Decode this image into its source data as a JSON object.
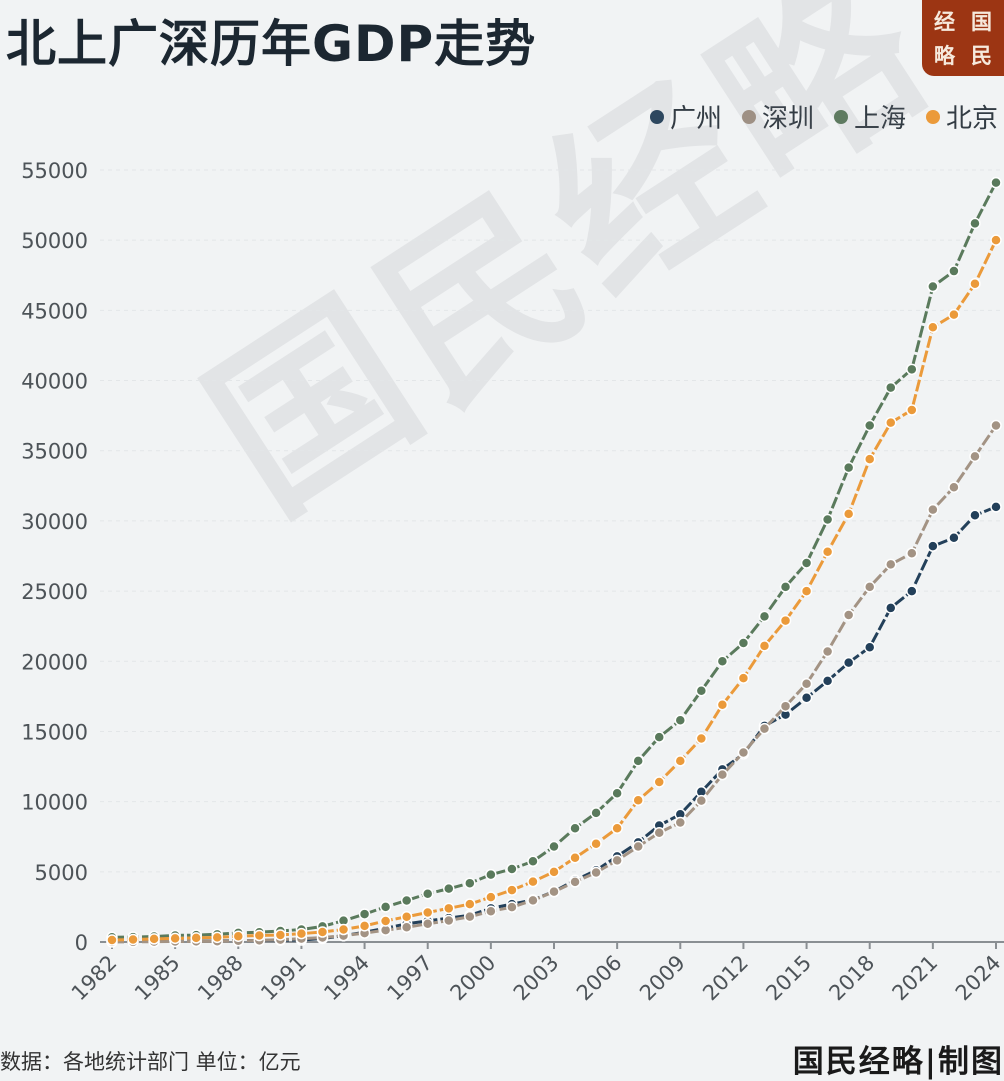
{
  "header": {
    "title": "北上广深历年GDP走势",
    "logo_chars": [
      "经",
      "国",
      "略",
      "民"
    ]
  },
  "legend": [
    {
      "label": "广州",
      "color": "#23405a"
    },
    {
      "label": "深圳",
      "color": "#a39384"
    },
    {
      "label": "上海",
      "color": "#5a7a5c"
    },
    {
      "label": "北京",
      "color": "#eb9a3a"
    }
  ],
  "watermark": "国民经略",
  "footer": {
    "source": "数据：各地统计部门  单位：亿元",
    "credit": "国民经略|制图"
  },
  "chart_data": {
    "type": "line",
    "title": "北上广深历年GDP走势",
    "xlabel": "",
    "ylabel": "亿元",
    "ylim": [
      0,
      55000
    ],
    "yticks": [
      0,
      5000,
      10000,
      15000,
      20000,
      25000,
      30000,
      35000,
      40000,
      45000,
      50000,
      55000
    ],
    "xtick_labels": [
      "1982",
      "1985",
      "1988",
      "1991",
      "1994",
      "1997",
      "2000",
      "2003",
      "2006",
      "2009",
      "2012",
      "2015",
      "2018",
      "2021",
      "2024"
    ],
    "grid": true,
    "legend_position": "top-right",
    "x": [
      1982,
      1983,
      1984,
      1985,
      1986,
      1987,
      1988,
      1989,
      1990,
      1991,
      1992,
      1993,
      1994,
      1995,
      1996,
      1997,
      1998,
      1999,
      2000,
      2001,
      2002,
      2003,
      2004,
      2005,
      2006,
      2007,
      2008,
      2009,
      2010,
      2011,
      2012,
      2013,
      2014,
      2015,
      2016,
      2017,
      2018,
      2019,
      2020,
      2021,
      2022,
      2023,
      2024
    ],
    "series": [
      {
        "name": "广州",
        "color": "#23405a",
        "values": [
          30,
          35,
          45,
          55,
          60,
          75,
          95,
          110,
          125,
          140,
          250,
          450,
          700,
          980,
          1300,
          1500,
          1700,
          1900,
          2400,
          2700,
          3000,
          3600,
          4400,
          5100,
          6100,
          7100,
          8300,
          9100,
          10700,
          12300,
          13400,
          15400,
          16200,
          17400,
          18600,
          19900,
          21000,
          23800,
          25000,
          28200,
          28800,
          30400,
          31000
        ]
      },
      {
        "name": "深圳",
        "color": "#a39384",
        "values": [
          8,
          13,
          23,
          39,
          42,
          56,
          87,
          116,
          172,
          237,
          317,
          453,
          634,
          843,
          1048,
          1298,
          1535,
          1804,
          2192,
          2482,
          2969,
          3585,
          4282,
          4951,
          5814,
          6801,
          7787,
          8514,
          10069,
          11922,
          13500,
          15200,
          16800,
          18400,
          20700,
          23300,
          25300,
          26900,
          27700,
          30800,
          32400,
          34600,
          36800
        ]
      },
      {
        "name": "上海",
        "color": "#5a7a5c",
        "values": [
          337,
          351,
          391,
          467,
          491,
          546,
          649,
          697,
          782,
          894,
          1114,
          1520,
          1990,
          2500,
          2960,
          3440,
          3800,
          4190,
          4800,
          5200,
          5750,
          6800,
          8100,
          9200,
          10600,
          12900,
          14600,
          15800,
          17900,
          20000,
          21300,
          23200,
          25300,
          27000,
          30100,
          33800,
          36800,
          39500,
          40800,
          46700,
          47800,
          51200,
          54100
        ]
      },
      {
        "name": "北京",
        "color": "#eb9a3a",
        "values": [
          140,
          180,
          220,
          260,
          290,
          330,
          410,
          460,
          500,
          600,
          710,
          890,
          1150,
          1500,
          1800,
          2100,
          2400,
          2700,
          3200,
          3700,
          4300,
          5000,
          6000,
          7000,
          8100,
          10100,
          11400,
          12900,
          14500,
          16900,
          18800,
          21100,
          22900,
          25000,
          27800,
          30500,
          34400,
          37000,
          37900,
          43800,
          44700,
          46900,
          50000
        ]
      }
    ]
  }
}
